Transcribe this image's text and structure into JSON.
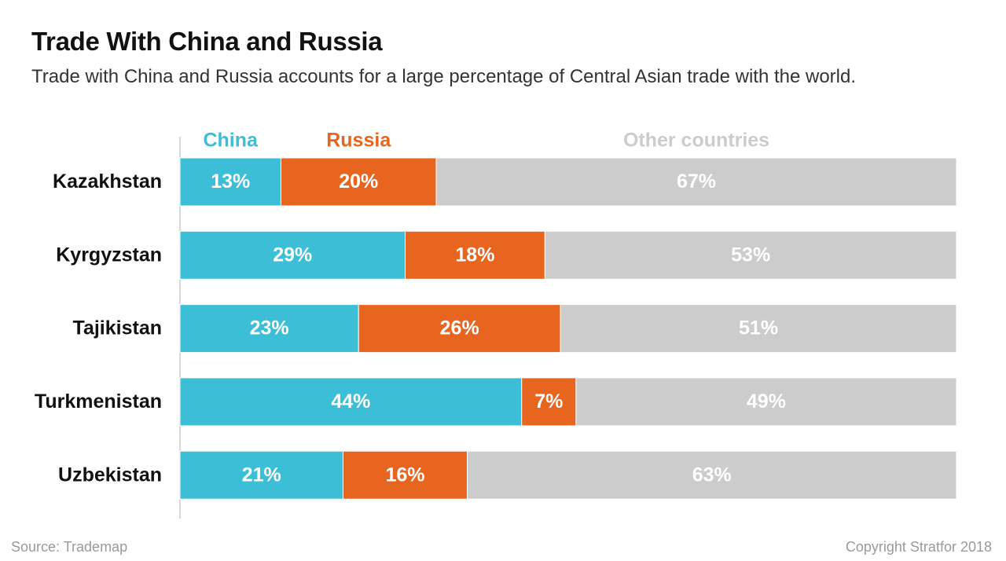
{
  "header": {
    "title": "Trade With China and Russia",
    "subtitle": "Trade with China and Russia accounts for a large percentage of Central Asian trade with the world."
  },
  "footer": {
    "source": "Source: Trademap",
    "copyright": "Copyright Stratfor 2018"
  },
  "colors": {
    "china": "#3cbfd6",
    "russia": "#e8651f",
    "other": "#cccccc",
    "label_text": "#ffffff",
    "axis": "#cccccc"
  },
  "chart_data": {
    "type": "bar",
    "orientation": "horizontal",
    "stacked": true,
    "percent_scale": true,
    "xlim": [
      0,
      100
    ],
    "categories": [
      "Kazakhstan",
      "Kyrgyzstan",
      "Tajikistan",
      "Turkmenistan",
      "Uzbekistan"
    ],
    "series": [
      {
        "name": "China",
        "values": [
          13,
          29,
          23,
          44,
          21
        ],
        "labels": [
          "13%",
          "29%",
          "23%",
          "44%",
          "21%"
        ]
      },
      {
        "name": "Russia",
        "values": [
          20,
          18,
          26,
          7,
          16
        ],
        "labels": [
          "20%",
          "18%",
          "26%",
          "7%",
          "16%"
        ]
      },
      {
        "name": "Other countries",
        "values": [
          67,
          53,
          51,
          49,
          63
        ],
        "labels": [
          "67%",
          "53%",
          "51%",
          "49%",
          "63%"
        ]
      }
    ],
    "legend_position": "top",
    "grid": false
  }
}
